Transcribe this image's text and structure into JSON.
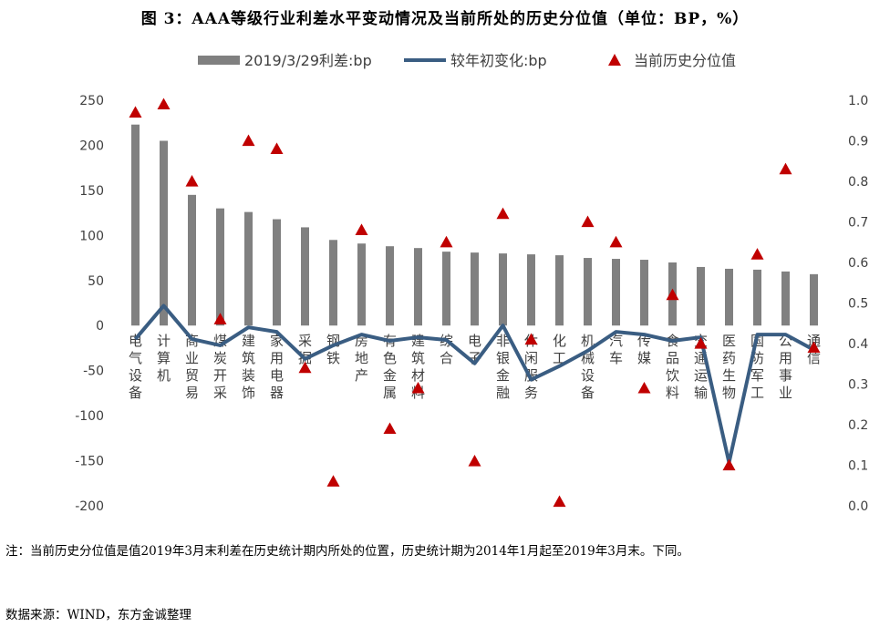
{
  "title": "图 3：AAA等级行业利差水平变动情况及当前所处的历史分位值（单位：BP，%）",
  "note": "注：当前历史分位值是值2019年3月末利差在历史统计期内所处的位置，历史统计期为2014年1月起至2019年3月末。下同。",
  "source": "数据来源：WIND，东方金诚整理",
  "colors": {
    "bar": "#808080",
    "line": "#3a5d82",
    "marker": "#c00000"
  },
  "chart_data": {
    "type": "bar",
    "categories": [
      "电气设备",
      "计算机",
      "商业贸易",
      "煤炭开采",
      "建筑装饰",
      "家用电器",
      "采掘",
      "钢铁",
      "房地产",
      "有色金属",
      "建筑材料",
      "综合",
      "电子",
      "非银金融",
      "休闲服务",
      "化工",
      "机械设备",
      "汽车",
      "传媒",
      "食品饮料",
      "交通运输",
      "医药生物",
      "国防军工",
      "公用事业",
      "通信"
    ],
    "category_labels": [
      "电气设备",
      "计算机",
      "商业贸易",
      "煤炭开采",
      "建筑装饰",
      "家用电器",
      "采掘",
      "钢铁",
      "房地产",
      "有色金属",
      "建筑材料",
      "综合",
      "电子",
      "非银金融",
      "休闲服务",
      "化工",
      "机械设备",
      "汽车",
      "传媒",
      "食品饮料",
      "交通运输",
      "医药生物",
      "国防军工",
      "公用事业",
      "通信"
    ],
    "series": [
      {
        "name": "2019/3/29利差:bp",
        "type": "bar",
        "axis": "left",
        "values": [
          223,
          205,
          145,
          130,
          126,
          118,
          109,
          95,
          91,
          88,
          86,
          82,
          81,
          80,
          79,
          78,
          75,
          74,
          73,
          70,
          65,
          63,
          62,
          60,
          57
        ]
      },
      {
        "name": "较年初变化:bp",
        "type": "line",
        "axis": "left",
        "values": [
          -15,
          22,
          -15,
          -22,
          -2,
          -7,
          -37,
          -22,
          -10,
          -17,
          -13,
          -16,
          -42,
          0,
          -60,
          -45,
          -28,
          -7,
          -10,
          -17,
          -13,
          -152,
          -10,
          -10,
          -27
        ]
      },
      {
        "name": "当前历史分位值",
        "type": "scatter",
        "axis": "right",
        "values": [
          0.97,
          0.99,
          0.8,
          0.46,
          0.9,
          0.88,
          0.34,
          0.06,
          0.68,
          0.19,
          0.29,
          0.65,
          0.11,
          0.72,
          0.41,
          0.01,
          0.7,
          0.65,
          0.29,
          0.52,
          0.4,
          0.1,
          0.62,
          0.83,
          0.39
        ]
      }
    ],
    "legend": [
      "2019/3/29利差:bp",
      "较年初变化:bp",
      "当前历史分位值"
    ],
    "legend_position": "top",
    "ylim": [
      -200,
      250
    ],
    "yticks": [
      -200,
      -150,
      -100,
      -50,
      0,
      50,
      100,
      150,
      200,
      250
    ],
    "y2lim": [
      0.0,
      1.0
    ],
    "y2ticks": [
      "0.0",
      "0.1",
      "0.2",
      "0.3",
      "0.4",
      "0.5",
      "0.6",
      "0.7",
      "0.8",
      "0.9",
      "1.0"
    ],
    "grid": false
  }
}
